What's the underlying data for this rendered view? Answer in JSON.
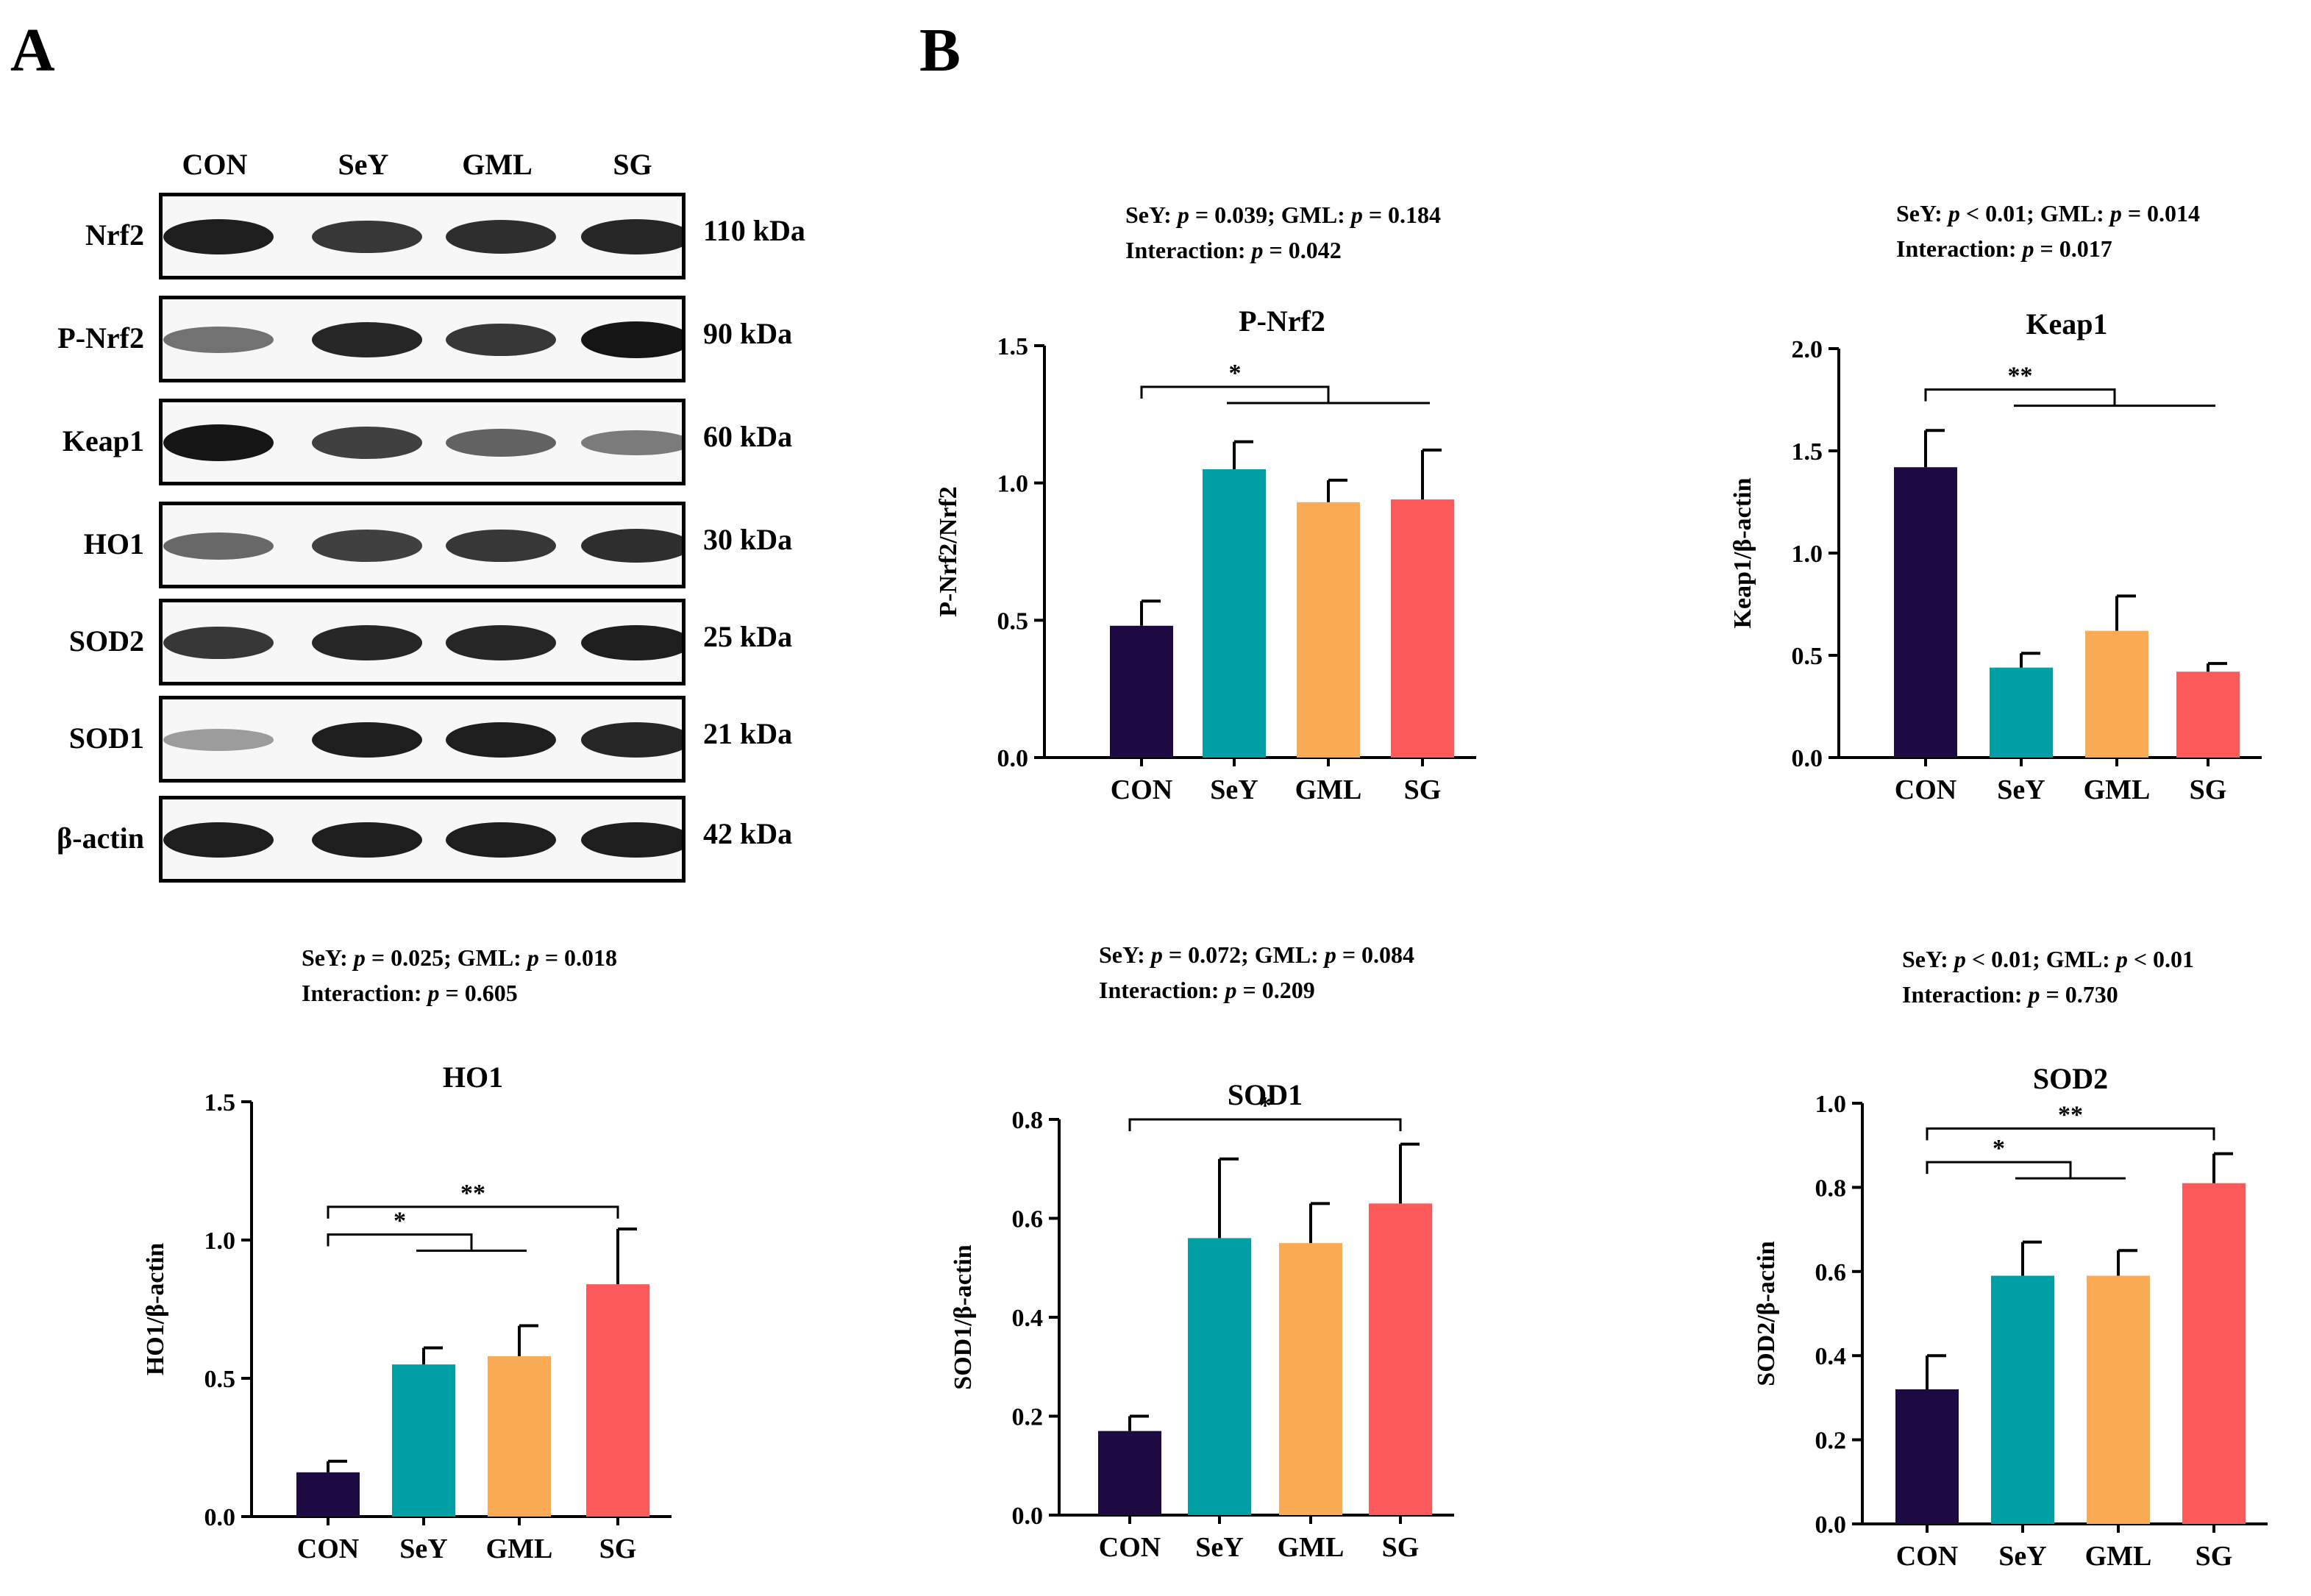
{
  "figure": {
    "panel_a_letter": "A",
    "panel_b_letter": "B"
  },
  "blot": {
    "lanes": [
      "CON",
      "SeY",
      "GML",
      "SG"
    ],
    "rows": [
      {
        "label": "Nrf2",
        "kda": "110 kDa",
        "intensity": [
          0.95,
          0.8,
          0.85,
          0.9
        ]
      },
      {
        "label": "P-Nrf2",
        "kda": "90 kDa",
        "intensity": [
          0.45,
          0.9,
          0.8,
          1.0
        ]
      },
      {
        "label": "Keap1",
        "kda": "60 kDa",
        "intensity": [
          1.0,
          0.75,
          0.55,
          0.4
        ]
      },
      {
        "label": "HO1",
        "kda": "30 kDa",
        "intensity": [
          0.5,
          0.75,
          0.8,
          0.85
        ]
      },
      {
        "label": "SOD2",
        "kda": "25 kDa",
        "intensity": [
          0.8,
          0.9,
          0.9,
          0.95
        ]
      },
      {
        "label": "SOD1",
        "kda": "21 kDa",
        "intensity": [
          0.2,
          0.95,
          0.95,
          0.9
        ]
      },
      {
        "label": "β-actin",
        "kda": "42 kDa",
        "intensity": [
          0.95,
          0.95,
          0.95,
          0.95
        ]
      }
    ]
  },
  "colors": {
    "CON": "#1e0a42",
    "SeY": "#009fa6",
    "GML": "#fcab55",
    "SG": "#fc5a5a",
    "axis": "#000000"
  },
  "chart_data": [
    {
      "type": "bar",
      "title": "P-Nrf2",
      "ylabel": "P-Nrf2/Nrf2",
      "categories": [
        "CON",
        "SeY",
        "GML",
        "SG"
      ],
      "values": [
        0.48,
        1.05,
        0.93,
        0.94
      ],
      "errors": [
        0.09,
        0.1,
        0.08,
        0.18
      ],
      "ylim": [
        0,
        1.5
      ],
      "yticks": [
        "0.0",
        "0.5",
        "1.0",
        "1.5"
      ],
      "stats_line1": {
        "seY_label": "SeY:",
        "seY_p": "p",
        "seY_val": "= 0.039;",
        "gml_label": "GML:",
        "gml_p": "p",
        "gml_val": "= 0.184"
      },
      "stats_line2": {
        "label": "Interaction:",
        "p": "p",
        "val": "= 0.042"
      },
      "significance": [
        {
          "symbol": "*",
          "from": 0,
          "to_group": [
            1,
            3
          ],
          "level": 1.35
        }
      ]
    },
    {
      "type": "bar",
      "title": "Keap1",
      "ylabel": "Keap1/β-actin",
      "categories": [
        "CON",
        "SeY",
        "GML",
        "SG"
      ],
      "values": [
        1.42,
        0.44,
        0.62,
        0.42
      ],
      "errors": [
        0.18,
        0.07,
        0.17,
        0.04
      ],
      "ylim": [
        0,
        2.0
      ],
      "yticks": [
        "0.0",
        "0.5",
        "1.0",
        "1.5",
        "2.0"
      ],
      "stats_line1": {
        "seY_label": "SeY:",
        "seY_p": "p",
        "seY_val": "< 0.01;",
        "gml_label": "GML:",
        "gml_p": "p",
        "gml_val": "= 0.014"
      },
      "stats_line2": {
        "label": "Interaction:",
        "p": "p",
        "val": "= 0.017"
      },
      "significance": [
        {
          "symbol": "**",
          "from": 0,
          "to_group": [
            1,
            3
          ],
          "level": 1.8
        }
      ]
    },
    {
      "type": "bar",
      "title": "HO1",
      "ylabel": "HO1/β-actin",
      "categories": [
        "CON",
        "SeY",
        "GML",
        "SG"
      ],
      "values": [
        0.16,
        0.55,
        0.58,
        0.84
      ],
      "errors": [
        0.04,
        0.06,
        0.11,
        0.2
      ],
      "ylim": [
        0,
        1.5
      ],
      "yticks": [
        "0.0",
        "0.5",
        "1.0",
        "1.5"
      ],
      "stats_line1": {
        "seY_label": "SeY:",
        "seY_p": "p",
        "seY_val": "= 0.025;",
        "gml_label": "GML:",
        "gml_p": "p",
        "gml_val": "= 0.018"
      },
      "stats_line2": {
        "label": "Interaction:",
        "p": "p",
        "val": "= 0.605"
      },
      "significance": [
        {
          "symbol": "**",
          "from": 0,
          "to": 3,
          "level": 1.12
        },
        {
          "symbol": "*",
          "from": 0,
          "to_group": [
            1,
            2
          ],
          "level": 1.02
        }
      ]
    },
    {
      "type": "bar",
      "title": "SOD1",
      "ylabel": "SOD1/β-actin",
      "categories": [
        "CON",
        "SeY",
        "GML",
        "SG"
      ],
      "values": [
        0.17,
        0.56,
        0.55,
        0.63
      ],
      "errors": [
        0.03,
        0.16,
        0.08,
        0.12
      ],
      "ylim": [
        0,
        0.8
      ],
      "yticks": [
        "0.0",
        "0.2",
        "0.4",
        "0.6",
        "0.8"
      ],
      "stats_line1": {
        "seY_label": "SeY:",
        "seY_p": "p",
        "seY_val": " = 0.072;",
        "gml_label": "GML:",
        "gml_p": " p",
        "gml_val": "= 0.084"
      },
      "stats_line2": {
        "label": "Interaction:",
        "p": "p",
        "val": "= 0.209"
      },
      "significance": [
        {
          "symbol": "*",
          "from": 0,
          "to": 3,
          "level": 0.8
        }
      ]
    },
    {
      "type": "bar",
      "title": "SOD2",
      "ylabel": "SOD2/β-actin",
      "categories": [
        "CON",
        "SeY",
        "GML",
        "SG"
      ],
      "values": [
        0.32,
        0.59,
        0.59,
        0.81
      ],
      "errors": [
        0.08,
        0.08,
        0.06,
        0.07
      ],
      "ylim": [
        0,
        1.0
      ],
      "yticks": [
        "0.0",
        "0.2",
        "0.4",
        "0.6",
        "0.8",
        "1.0"
      ],
      "stats_line1": {
        "seY_label": "SeY:",
        "seY_p": "p",
        "seY_val": "< 0.01;",
        "gml_label": "GML:",
        "gml_p": "p",
        "gml_val": "< 0.01"
      },
      "stats_line2": {
        "label": "Interaction:",
        "p": "p",
        "val": "= 0.730"
      },
      "significance": [
        {
          "symbol": "**",
          "from": 0,
          "to": 3,
          "level": 0.94
        },
        {
          "symbol": "*",
          "from": 0,
          "to_group": [
            1,
            2
          ],
          "level": 0.86
        }
      ]
    }
  ]
}
